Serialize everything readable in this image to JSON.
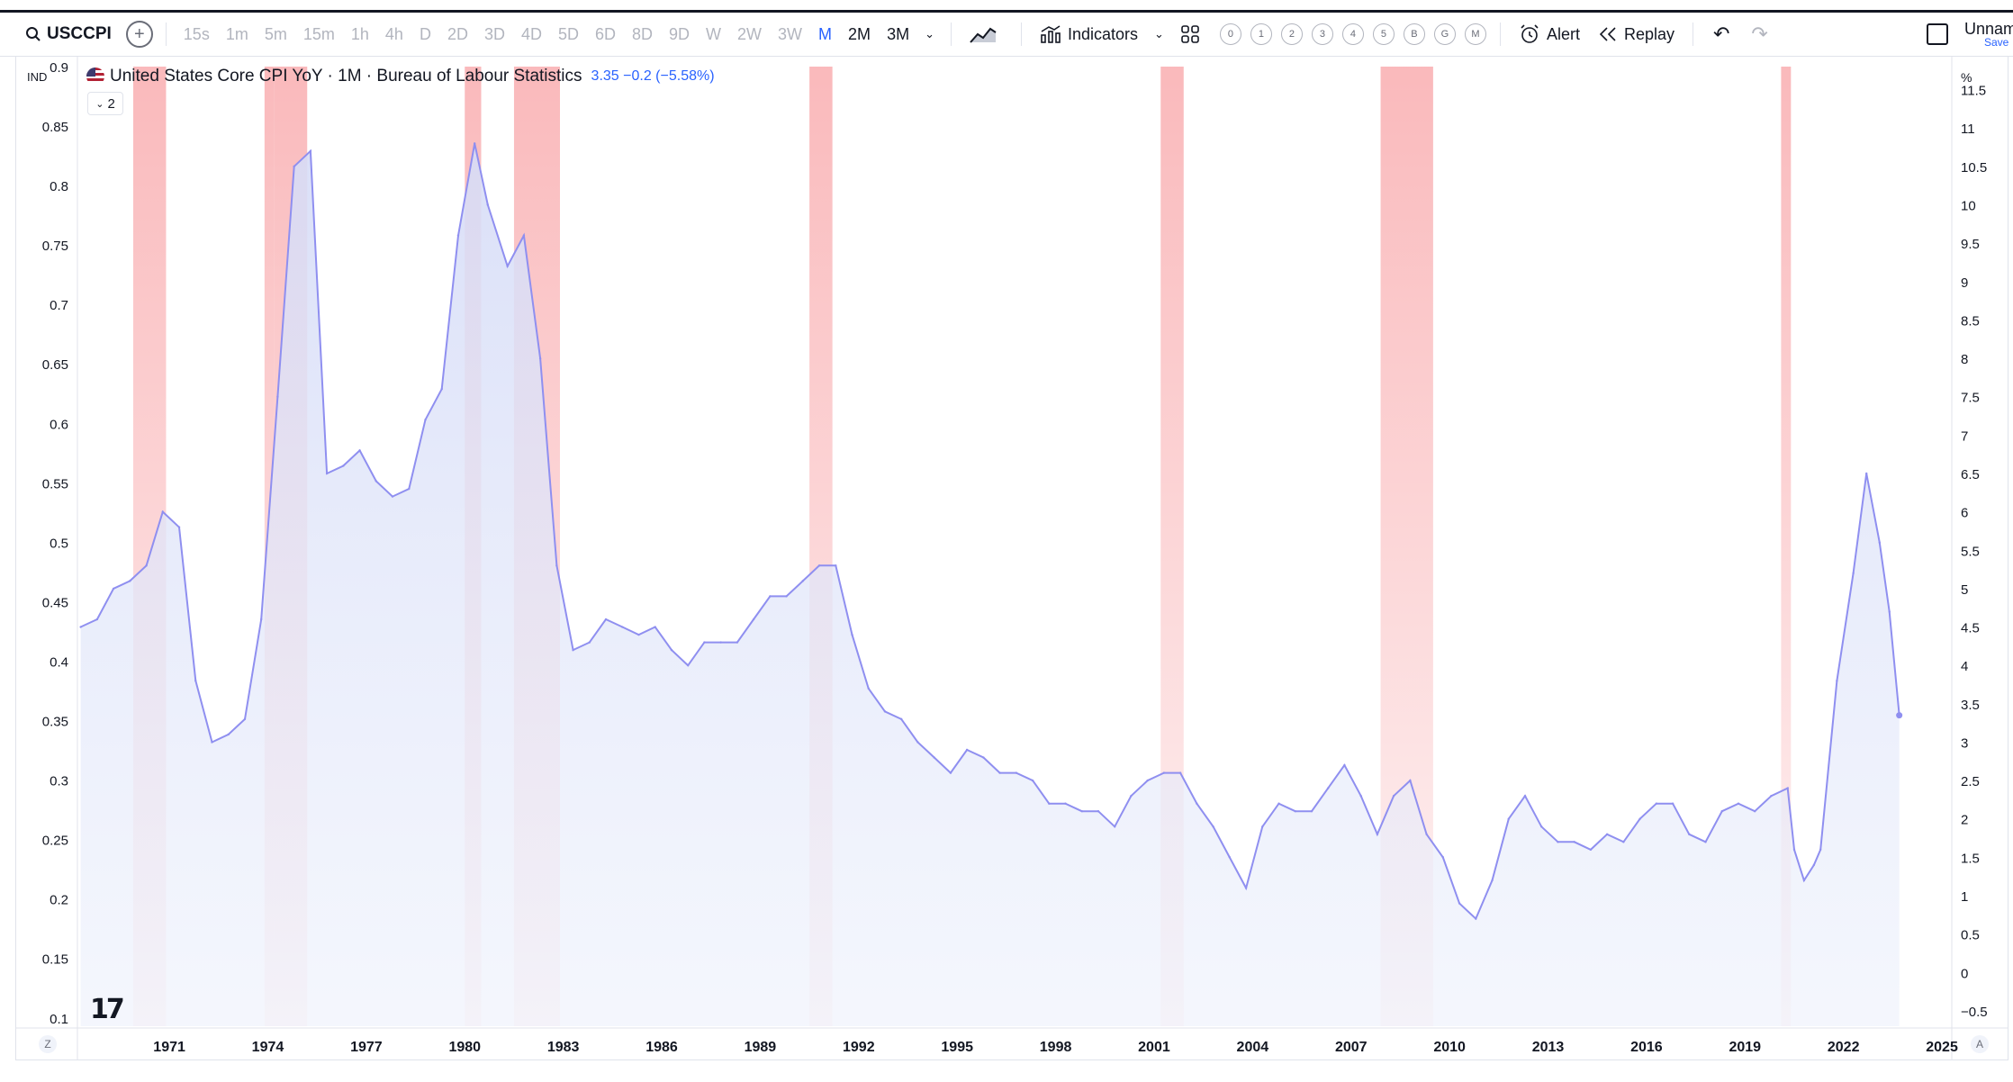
{
  "toolbar": {
    "symbol": "USCCPI",
    "intervals": [
      "15s",
      "1m",
      "5m",
      "15m",
      "1h",
      "4h",
      "D",
      "2D",
      "3D",
      "4D",
      "5D",
      "6D",
      "8D",
      "9D",
      "W",
      "2W",
      "3W",
      "M",
      "2M",
      "3M"
    ],
    "active_interval": "M",
    "indicators_label": "Indicators",
    "layout_buttons": [
      "0",
      "1",
      "2",
      "3",
      "4",
      "5",
      "B",
      "G",
      "M"
    ],
    "alert_label": "Alert",
    "replay_label": "Replay",
    "layout_name": "Unnam",
    "save_label": "Save"
  },
  "legend": {
    "title": "United States Core CPI YoY · 1M · Bureau of Labour Statistics",
    "value": "3.35",
    "change": "−0.2 (−5.58%)",
    "collapsed_count": "2"
  },
  "left_scale_label": "IND",
  "right_scale_label": "%",
  "corner_left": "Z",
  "corner_right": "A",
  "colors": {
    "line": "#8f8ff0",
    "area_top": "#d6dcf7",
    "area_bottom": "#edf1fc",
    "recession": "#f8a2a5",
    "accent": "#2962ff"
  },
  "chart_data": {
    "type": "area",
    "title": "United States Core CPI YoY",
    "right_axis": {
      "ticks": [
        "11.5",
        "11",
        "10.5",
        "10",
        "9.5",
        "9",
        "8.5",
        "8",
        "7.5",
        "7",
        "6.5",
        "6",
        "5.5",
        "5",
        "4.5",
        "4",
        "3.5",
        "3",
        "2.5",
        "2",
        "1.5",
        "1",
        "0.5",
        "0",
        "−0.5"
      ],
      "ylim": [
        -0.7,
        11.8
      ]
    },
    "left_axis": {
      "ticks": [
        "0.9",
        "0.85",
        "0.8",
        "0.75",
        "0.7",
        "0.65",
        "0.6",
        "0.55",
        "0.5",
        "0.45",
        "0.4",
        "0.35",
        "0.3",
        "0.25",
        "0.2",
        "0.15",
        "0.1"
      ],
      "ylim": [
        0.093,
        0.9
      ]
    },
    "x_ticks": [
      "1971",
      "1974",
      "1977",
      "1980",
      "1983",
      "1986",
      "1989",
      "1992",
      "1995",
      "1998",
      "2001",
      "2004",
      "2007",
      "2010",
      "2013",
      "2016",
      "2019",
      "2022",
      "2025"
    ],
    "xlim": [
      1968.2,
      2025.3
    ],
    "series": [
      {
        "x": [
          1968.3,
          1968.8,
          1969.3,
          1969.8,
          1970.3,
          1970.8,
          1971.3,
          1971.8,
          1972.3,
          1972.8,
          1973.3,
          1973.8,
          1974.3,
          1974.8,
          1975.3,
          1975.8,
          1976.3,
          1976.8,
          1977.3,
          1977.8,
          1978.3,
          1978.8,
          1979.3,
          1979.8,
          1980.3,
          1980.7,
          1981.3,
          1981.8,
          1982.3,
          1982.8,
          1983.3,
          1983.8,
          1984.3,
          1984.8,
          1985.3,
          1985.8,
          1986.3,
          1986.8,
          1987.3,
          1987.8,
          1988.3,
          1988.8,
          1989.3,
          1989.8,
          1990.3,
          1990.8,
          1991.3,
          1991.8,
          1992.3,
          1992.8,
          1993.3,
          1993.8,
          1994.3,
          1994.8,
          1995.3,
          1995.8,
          1996.3,
          1996.8,
          1997.3,
          1997.8,
          1998.3,
          1998.8,
          1999.3,
          1999.8,
          2000.3,
          2000.8,
          2001.3,
          2001.8,
          2002.3,
          2002.8,
          2003.3,
          2003.8,
          2004.3,
          2004.8,
          2005.3,
          2005.8,
          2006.3,
          2006.8,
          2007.3,
          2007.8,
          2008.3,
          2008.8,
          2009.3,
          2009.8,
          2010.3,
          2010.8,
          2011.3,
          2011.8,
          2012.3,
          2012.8,
          2013.3,
          2013.8,
          2014.3,
          2014.8,
          2015.3,
          2015.8,
          2016.3,
          2016.8,
          2017.3,
          2017.8,
          2018.3,
          2018.8,
          2019.3,
          2019.8,
          2020.3,
          2020.5,
          2020.8,
          2021.1,
          2021.3,
          2021.8,
          2022.3,
          2022.7,
          2023.1,
          2023.4,
          2023.7
        ],
        "values": [
          4.5,
          4.6,
          5.0,
          5.1,
          5.3,
          6.0,
          5.8,
          3.8,
          3.0,
          3.1,
          3.3,
          4.6,
          7.5,
          10.5,
          10.7,
          6.5,
          6.6,
          6.8,
          6.4,
          6.2,
          6.3,
          7.2,
          7.6,
          9.6,
          10.8,
          10.0,
          9.2,
          9.6,
          8.0,
          5.3,
          4.2,
          4.3,
          4.6,
          4.5,
          4.4,
          4.5,
          4.2,
          4.0,
          4.3,
          4.3,
          4.3,
          4.6,
          4.9,
          4.9,
          5.1,
          5.3,
          5.3,
          4.4,
          3.7,
          3.4,
          3.3,
          3.0,
          2.8,
          2.6,
          2.9,
          2.8,
          2.6,
          2.6,
          2.5,
          2.2,
          2.2,
          2.1,
          2.1,
          1.9,
          2.3,
          2.5,
          2.6,
          2.6,
          2.2,
          1.9,
          1.5,
          1.1,
          1.9,
          2.2,
          2.1,
          2.1,
          2.4,
          2.7,
          2.3,
          1.8,
          2.3,
          2.5,
          1.8,
          1.5,
          0.9,
          0.7,
          1.2,
          2.0,
          2.3,
          1.9,
          1.7,
          1.7,
          1.6,
          1.8,
          1.7,
          2.0,
          2.2,
          2.2,
          1.8,
          1.7,
          2.1,
          2.2,
          2.1,
          2.3,
          2.4,
          1.6,
          1.2,
          1.4,
          1.6,
          3.8,
          5.2,
          6.5,
          5.6,
          4.7,
          3.35
        ]
      }
    ],
    "recession_bands": [
      [
        1969.9,
        1970.9
      ],
      [
        1973.9,
        1974.2
      ],
      [
        1974.2,
        1975.2
      ],
      [
        1980.0,
        1980.5
      ],
      [
        1981.5,
        1982.9
      ],
      [
        1990.5,
        1991.2
      ],
      [
        2001.2,
        2001.9
      ],
      [
        2007.9,
        2009.5
      ],
      [
        2020.1,
        2020.4
      ]
    ]
  }
}
